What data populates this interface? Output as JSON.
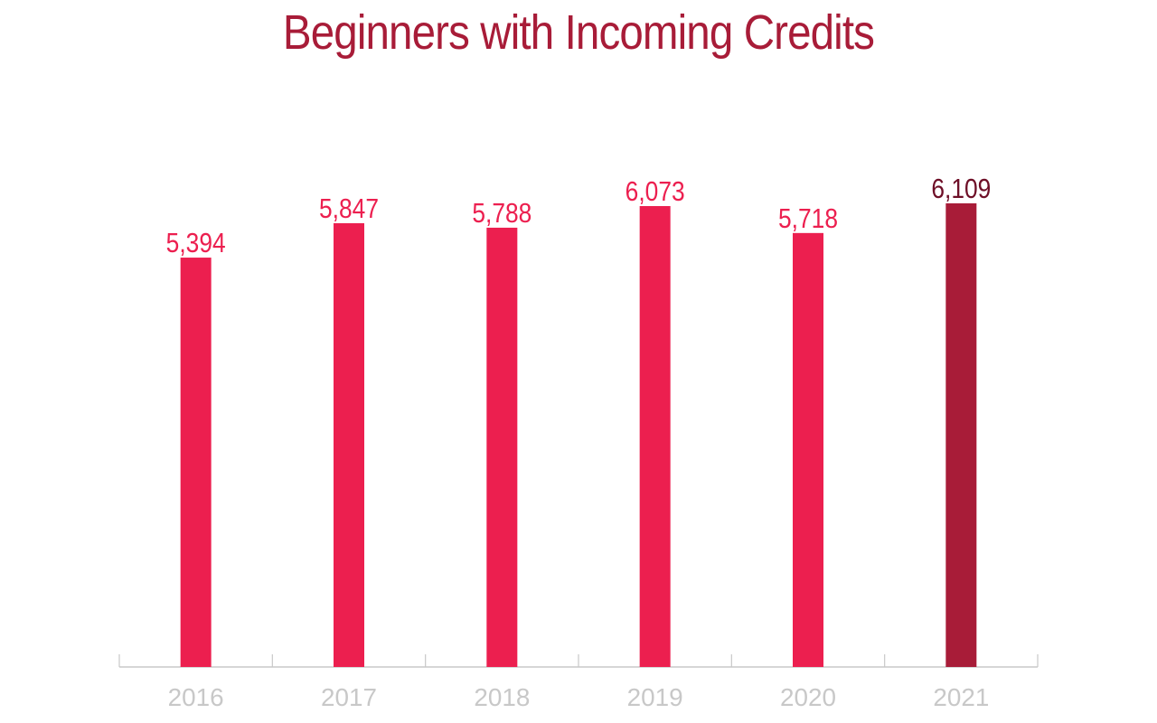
{
  "chart_data": {
    "type": "bar",
    "title": "Beginners with Incoming Credits",
    "categories": [
      "2016",
      "2017",
      "2018",
      "2019",
      "2020",
      "2021"
    ],
    "values": [
      5394,
      5847,
      5788,
      6073,
      5718,
      6109
    ],
    "value_labels": [
      "5,394",
      "5,847",
      "5,788",
      "6,073",
      "5,718",
      "6,109"
    ],
    "highlight_index": 5,
    "ylim": [
      0,
      6109
    ],
    "grid": false,
    "legend": "none",
    "colors": {
      "title": "#A81C38",
      "bar": "#EC1F4F",
      "bar_highlight": "#A81C38",
      "label": "#EC1F4F",
      "label_highlight": "#6E0F27",
      "axis": "#C8C8C8",
      "tick_label": "#C8C8C8"
    }
  }
}
